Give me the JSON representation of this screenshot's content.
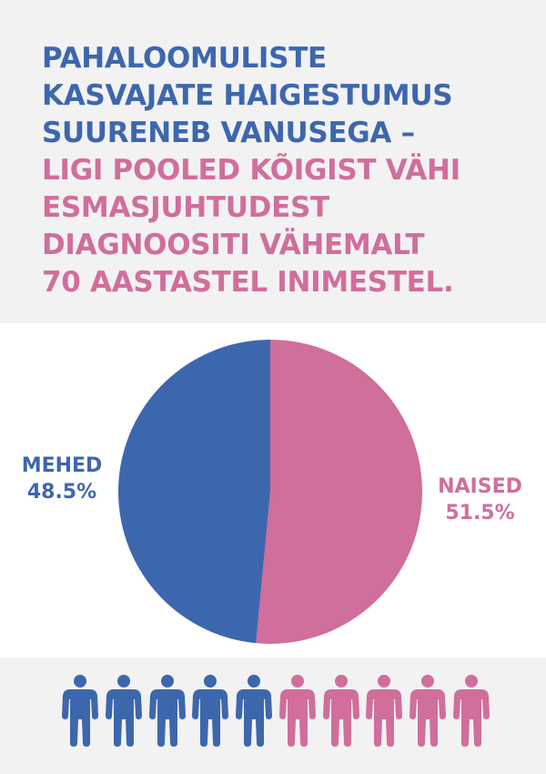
{
  "headline": {
    "blue_lines": [
      "PAHALOOMULISTE",
      "KASVAJATE HAIGESTUMUS",
      "SUURENEB VANUSEGA –"
    ],
    "pink_lines": [
      "LIGI POOLED KÕIGIST VÄHI",
      "ESMASJUHTUDEST",
      "DIAGNOOSITI VÄHEMALT",
      "70 AASTASTEL INIMESTEL."
    ]
  },
  "colors": {
    "blue": "#3d67ad",
    "pink": "#d06e9c",
    "band": "#f2f2f2"
  },
  "chart_data": {
    "type": "pie",
    "title": "",
    "slices": [
      {
        "label": "MEHED",
        "value": 48.5,
        "value_label": "48.5%",
        "color": "#3d67ad"
      },
      {
        "label": "NAISED",
        "value": 51.5,
        "value_label": "51.5%",
        "color": "#d06e9c"
      }
    ],
    "start": "12 o'clock",
    "direction": "clockwise from NAISED"
  },
  "people_row": {
    "icon": "person-icon",
    "figures": [
      "blue",
      "blue",
      "blue",
      "blue",
      "blue",
      "pink",
      "pink",
      "pink",
      "pink",
      "pink"
    ]
  }
}
